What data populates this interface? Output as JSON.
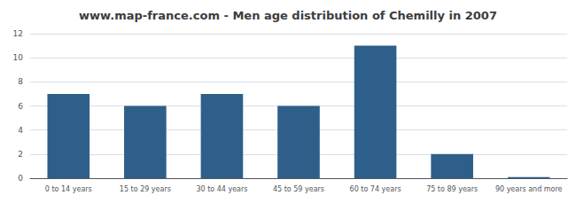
{
  "chart_data": {
    "type": "bar",
    "title": "www.map-france.com - Men age distribution of Chemilly in 2007",
    "categories": [
      "0 to 14 years",
      "15 to 29 years",
      "30 to 44 years",
      "45 to 59 years",
      "60 to 74 years",
      "75 to 89 years",
      "90 years and more"
    ],
    "values": [
      7,
      6,
      7,
      6,
      11,
      2,
      0.1
    ],
    "color": "#2e5f8a",
    "ylim": [
      0,
      12
    ],
    "yticks": [
      0,
      2,
      4,
      6,
      8,
      10,
      12
    ],
    "grid": true
  }
}
